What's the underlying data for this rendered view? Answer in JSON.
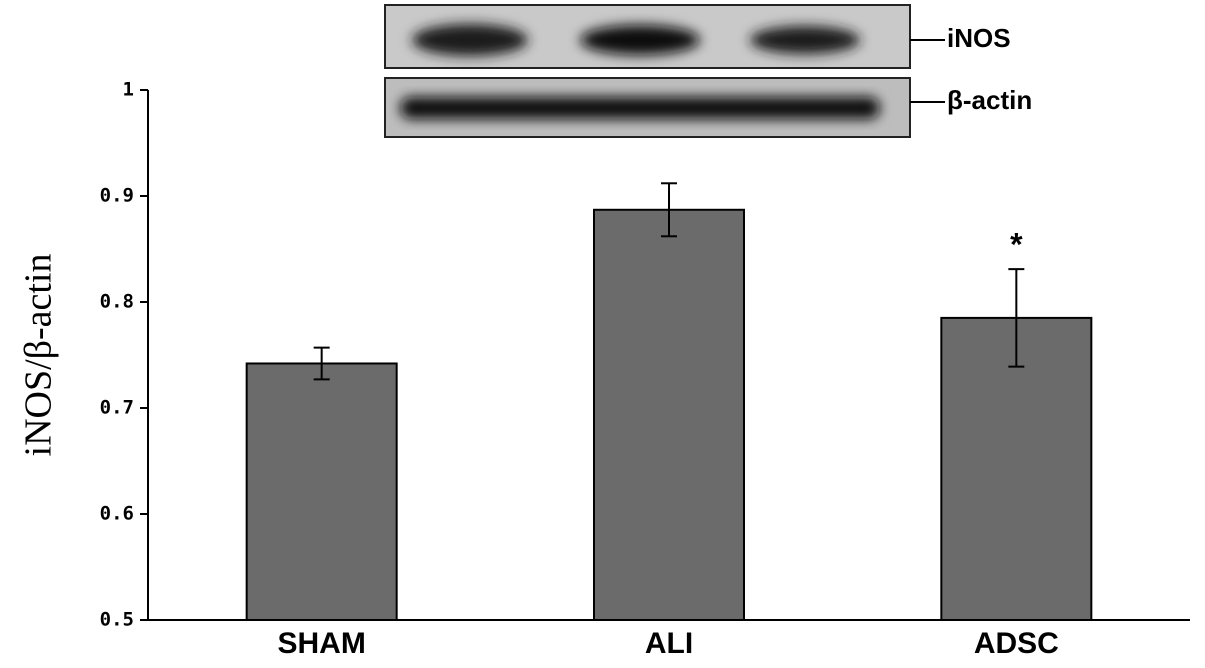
{
  "chart_data": {
    "type": "bar",
    "y_label": "iNOS/β-actin",
    "categories": [
      "SHAM",
      "ALI",
      "ADSC"
    ],
    "values": [
      0.742,
      0.887,
      0.785
    ],
    "errors": [
      0.015,
      0.025,
      0.046
    ],
    "color": "#6b6b6b",
    "ylim": [
      0.5,
      1
    ],
    "yticks": [
      0.5,
      0.6,
      0.7,
      0.8,
      0.9,
      1
    ],
    "annotations": [
      {
        "text": "*",
        "category": 2
      }
    ],
    "blot_labels": [
      "iNOS",
      "β-actin"
    ]
  }
}
